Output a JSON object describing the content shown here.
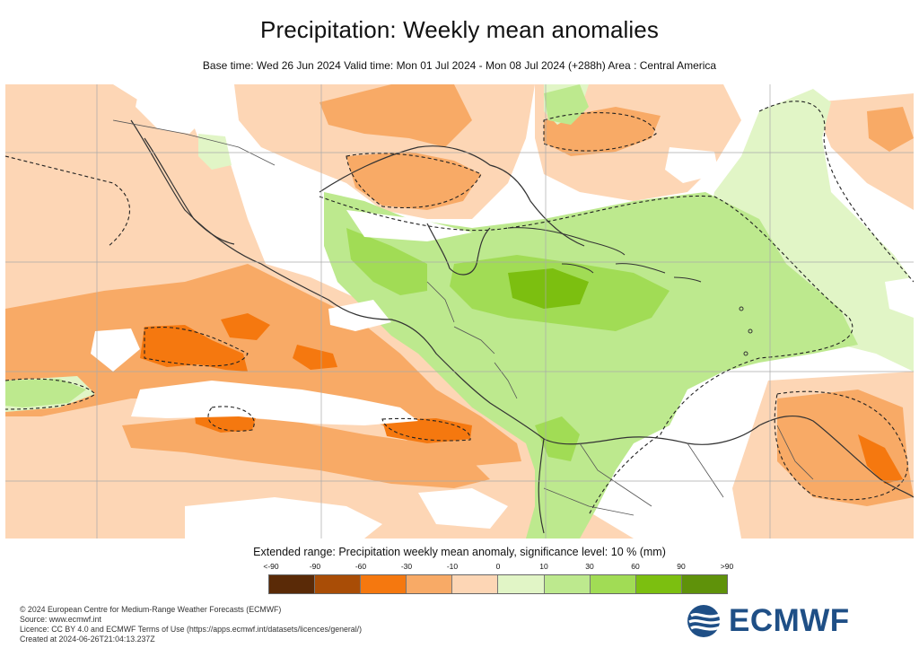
{
  "header": {
    "title": "Precipitation: Weekly mean anomalies",
    "subtitle": "Base time: Wed 26 Jun 2024 Valid time: Mon 01 Jul 2024 - Mon 08 Jul 2024 (+288h) Area : Central America"
  },
  "map": {
    "region": "Central America",
    "layers": [
      "precipitation-anomaly-shading",
      "significance-contours",
      "coastlines",
      "country-borders",
      "graticule"
    ]
  },
  "legend": {
    "title": "Extended range: Precipitation weekly mean anomaly, significance level: 10 % (mm)",
    "labels": [
      "<-90",
      "-90",
      "-60",
      "-30",
      "-10",
      "0",
      "10",
      "30",
      "60",
      "90",
      ">90"
    ],
    "colors": [
      "#5a2a07",
      "#a94d06",
      "#f5780f",
      "#f8aa66",
      "#fdd6b5",
      "#e1f5c6",
      "#bde98e",
      "#a1dc55",
      "#7cbf10",
      "#5f920a",
      "#486c06"
    ]
  },
  "footer": {
    "lines": [
      "© 2024 European Centre for Medium-Range Weather Forecasts (ECMWF)",
      "Source: www.ecmwf.int",
      "Licence: CC BY 4.0 and ECMWF Terms of Use (https://apps.ecmwf.int/datasets/licences/general/)",
      "Created at 2024-06-26T21:04:13.237Z"
    ]
  },
  "logo": {
    "text": "ECMWF",
    "color": "#1f4f86"
  }
}
